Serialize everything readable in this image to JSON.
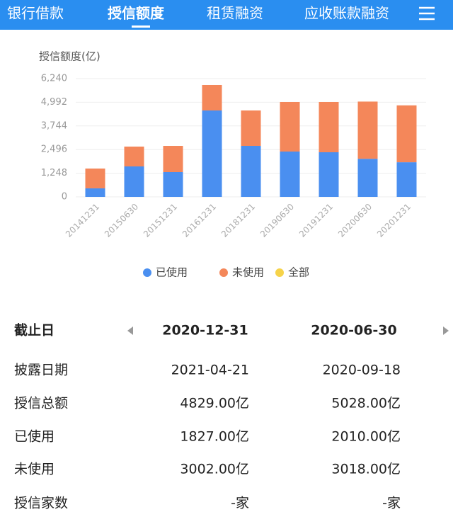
{
  "tabs": [
    "银行借款",
    "授信额度",
    "租赁融资",
    "应收账款融资"
  ],
  "chart_data": {
    "type": "stacked_bar",
    "y_axis_label": "授信额度(亿)",
    "categories": [
      "20141231",
      "20150630",
      "20151231",
      "20161231",
      "20181231",
      "20190630",
      "20191231",
      "20200630",
      "20201231"
    ],
    "series": [
      {
        "name": "已使用",
        "color": "#4a8ff0",
        "values": [
          450,
          1607,
          1308,
          4559,
          2690,
          2392,
          2354,
          2010,
          1827
        ]
      },
      {
        "name": "未使用",
        "color": "#f4875a",
        "values": [
          1045,
          1046,
          1382,
          1345,
          1869,
          2615,
          2653,
          3018,
          3002
        ]
      },
      {
        "name": "全部",
        "color": "#f6d34a",
        "values": [
          null,
          null,
          null,
          null,
          null,
          null,
          null,
          null,
          null
        ]
      }
    ],
    "ylim": [
      0,
      6240
    ],
    "yticks": [
      0,
      {
        "value": 1248,
        "label": "1,248"
      },
      {
        "value": 2496,
        "label": "2,496"
      },
      {
        "value": 3744,
        "label": "3,744"
      },
      {
        "value": 4992,
        "label": "4,992"
      },
      {
        "value": 6240,
        "label": "6,240"
      }
    ]
  },
  "table": {
    "header": [
      "截止日",
      "2020-12-31",
      "2020-06-30"
    ],
    "rows": [
      [
        "披露日期",
        "2021-04-21",
        "2020-09-18"
      ],
      [
        "授信总额",
        "4829.00亿",
        "5028.00亿"
      ],
      [
        "已使用",
        "1827.00亿",
        "2010.00亿"
      ],
      [
        "未使用",
        "3002.00亿",
        "3018.00亿"
      ],
      [
        "授信家数",
        "-家",
        "-家"
      ]
    ]
  }
}
